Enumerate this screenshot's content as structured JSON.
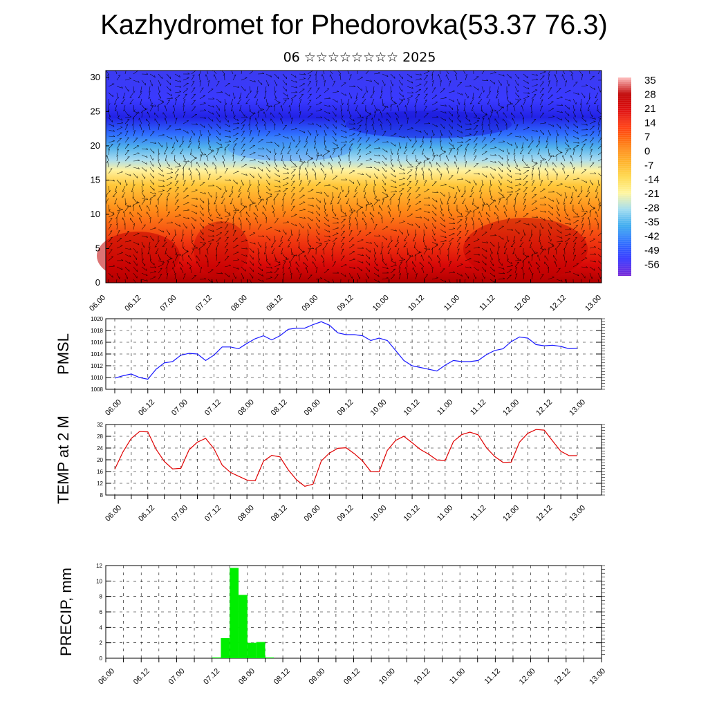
{
  "title": "Kazhydromet for Phedorovka(53.37 76.3)",
  "subtitle": "06 ☆☆☆☆☆☆☆☆ 2025",
  "colors": {
    "pmsl_line": "#1a1aff",
    "temp_line": "#e00000",
    "precip_bar": "#00ee00",
    "section_scale": [
      "#7b2bd6",
      "#3333ff",
      "#2f6fff",
      "#39a9f0",
      "#9fdcf0",
      "#fff6a0",
      "#ffd84a",
      "#ffae28",
      "#ff7a10",
      "#ff3c10",
      "#e01010",
      "#c00000",
      "#ffc0c0"
    ]
  },
  "chart_data": [
    {
      "type": "heatmap",
      "title": "",
      "y_ticks": [
        "0",
        "5",
        "10",
        "15",
        "20",
        "25",
        "30"
      ],
      "ylim": [
        0,
        31
      ],
      "x_ticks": [
        "06.00",
        "06.12",
        "07.00",
        "07.12",
        "08.00",
        "08.12",
        "09.00",
        "09.12",
        "10.00",
        "10.12",
        "11.00",
        "11.12",
        "12.00",
        "12.12",
        "13.00"
      ],
      "colorbar_labels": [
        "35",
        "28",
        "21",
        "14",
        "7",
        "0",
        "-7",
        "-14",
        "-21",
        "-28",
        "-35",
        "-42",
        "-49",
        "-56"
      ],
      "wind_vectors": true
    },
    {
      "type": "line",
      "ylabel": "PMSL",
      "ylim": [
        1008,
        1020
      ],
      "y_ticks": [
        "1008",
        "1010",
        "1012",
        "1014",
        "1016",
        "1018",
        "1020"
      ],
      "x_ticks": [
        "06.00",
        "06.12",
        "07.00",
        "07.12",
        "08.00",
        "08.12",
        "09.00",
        "09.12",
        "10.00",
        "10.12",
        "11.00",
        "11.12",
        "12.00",
        "12.12",
        "13.00"
      ],
      "x_hours": [
        0,
        3,
        6,
        9,
        12,
        15,
        18,
        21,
        24,
        27,
        30,
        33,
        36,
        39,
        42,
        45,
        48,
        51,
        54,
        57,
        60,
        63,
        66,
        69,
        72,
        75,
        78,
        81,
        84,
        87,
        90,
        93,
        96,
        99,
        102,
        105,
        108,
        111,
        114,
        117,
        120,
        123,
        126,
        129,
        132,
        135,
        138,
        141,
        144,
        147,
        150,
        153,
        156,
        159,
        162,
        165,
        168
      ],
      "values": [
        1009.9,
        1010.3,
        1010.6,
        1010.0,
        1009.7,
        1011.4,
        1012.5,
        1012.7,
        1013.8,
        1014.1,
        1014.0,
        1012.9,
        1013.8,
        1015.2,
        1015.2,
        1014.9,
        1015.8,
        1016.6,
        1017.1,
        1016.4,
        1017.1,
        1018.2,
        1018.4,
        1018.4,
        1019.0,
        1019.5,
        1018.9,
        1017.6,
        1017.3,
        1017.3,
        1017.1,
        1016.3,
        1016.7,
        1016.3,
        1014.6,
        1012.9,
        1012.0,
        1011.7,
        1011.4,
        1011.1,
        1012.1,
        1012.9,
        1012.7,
        1012.7,
        1012.9,
        1013.9,
        1014.6,
        1014.9,
        1016.1,
        1016.9,
        1016.7,
        1015.6,
        1015.4,
        1015.5,
        1015.3,
        1014.9,
        1015.0
      ]
    },
    {
      "type": "line",
      "ylabel": "TEMP at 2 M",
      "ylim": [
        8,
        32
      ],
      "y_ticks": [
        "8",
        "12",
        "16",
        "20",
        "24",
        "28",
        "32"
      ],
      "x_ticks": [
        "06.00",
        "06.12",
        "07.00",
        "07.12",
        "08.00",
        "08.12",
        "09.00",
        "09.12",
        "10.00",
        "10.12",
        "11.00",
        "11.12",
        "12.00",
        "12.12",
        "13.00"
      ],
      "x_hours": [
        0,
        3,
        6,
        9,
        12,
        15,
        18,
        21,
        24,
        27,
        30,
        33,
        36,
        39,
        42,
        45,
        48,
        51,
        54,
        57,
        60,
        63,
        66,
        69,
        72,
        75,
        78,
        81,
        84,
        87,
        90,
        93,
        96,
        99,
        102,
        105,
        108,
        111,
        114,
        117,
        120,
        123,
        126,
        129,
        132,
        135,
        138,
        141,
        144,
        147,
        150,
        153,
        156,
        159,
        162,
        165,
        168
      ],
      "values": [
        16.8,
        22.7,
        27.3,
        29.6,
        29.5,
        23.6,
        19.4,
        16.9,
        17.1,
        23.4,
        26.0,
        27.3,
        23.8,
        18.2,
        15.7,
        14.4,
        13.1,
        12.9,
        19.5,
        21.5,
        21.0,
        16.6,
        13.2,
        11.0,
        11.7,
        19.6,
        22.3,
        23.9,
        24.1,
        22.1,
        19.6,
        16.0,
        15.9,
        23.2,
        26.6,
        28.0,
        25.8,
        23.5,
        21.9,
        19.9,
        19.8,
        26.2,
        28.6,
        29.4,
        28.5,
        24.1,
        21.1,
        19.1,
        19.2,
        26.0,
        29.0,
        30.3,
        30.1,
        26.4,
        22.9,
        21.4,
        21.4
      ]
    },
    {
      "type": "bar",
      "ylabel": "PRECIP, mm",
      "ylim": [
        0,
        12
      ],
      "y_ticks": [
        "0",
        "2",
        "4",
        "6",
        "8",
        "10",
        "12"
      ],
      "x_ticks": [
        "06.00",
        "06.12",
        "07.00",
        "07.12",
        "08.00",
        "08.12",
        "09.00",
        "09.12",
        "10.00",
        "10.12",
        "11.00",
        "11.12",
        "12.00",
        "12.12",
        "13.00"
      ],
      "bars": [
        {
          "start_hour": 36,
          "end_hour": 39,
          "value": 0.1
        },
        {
          "start_hour": 39,
          "end_hour": 42,
          "value": 2.6
        },
        {
          "start_hour": 42,
          "end_hour": 45,
          "value": 11.7
        },
        {
          "start_hour": 45,
          "end_hour": 48,
          "value": 8.2
        },
        {
          "start_hour": 48,
          "end_hour": 51,
          "value": 2.0
        },
        {
          "start_hour": 51,
          "end_hour": 54,
          "value": 2.1
        },
        {
          "start_hour": 54,
          "end_hour": 57,
          "value": 0.1
        }
      ]
    }
  ]
}
